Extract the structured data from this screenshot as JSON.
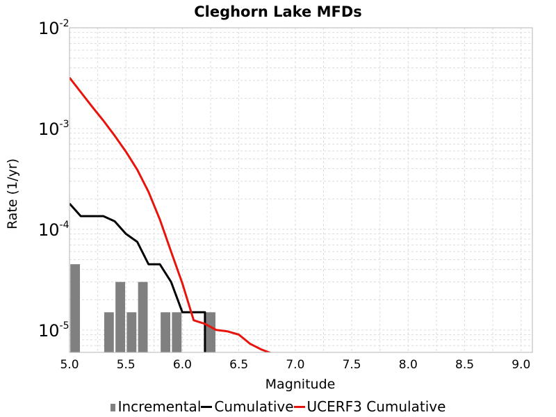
{
  "chart_data": {
    "type": "bar+line",
    "title": "Cleghorn Lake MFDs",
    "xlabel": "Magnitude",
    "ylabel": "Rate (1/yr)",
    "x_scale": "linear",
    "y_scale": "log",
    "xlim": [
      5.0,
      9.1
    ],
    "ylim": [
      6e-06,
      0.01
    ],
    "grid": true,
    "legend_position": "bottom",
    "x_ticks": [
      "5.0",
      "5.5",
      "6.0",
      "6.5",
      "7.0",
      "7.5",
      "8.0",
      "8.5",
      "9.0"
    ],
    "y_ticks": [
      {
        "base": "10",
        "exp": "-2",
        "value": 0.01
      },
      {
        "base": "10",
        "exp": "-3",
        "value": 0.001
      },
      {
        "base": "10",
        "exp": "-4",
        "value": 0.0001
      },
      {
        "base": "10",
        "exp": "-5",
        "value": 1e-05
      }
    ],
    "series": [
      {
        "name": "Incremental",
        "kind": "bar",
        "color": "#808080",
        "bin_width": 0.1,
        "x": [
          5.05,
          5.35,
          5.45,
          5.55,
          5.65,
          5.85,
          5.95,
          6.25
        ],
        "y": [
          4.5e-05,
          1.5e-05,
          3e-05,
          1.5e-05,
          3e-05,
          1.5e-05,
          1.5e-05,
          1.5e-05
        ]
      },
      {
        "name": "Cumulative",
        "kind": "line",
        "color": "#000000",
        "x": [
          5.0,
          5.1,
          5.3,
          5.4,
          5.5,
          5.6,
          5.7,
          5.8,
          5.9,
          6.0,
          6.1,
          6.2,
          6.2
        ],
        "y": [
          0.00018,
          0.000135,
          0.000135,
          0.00012,
          9e-05,
          7.5e-05,
          4.5e-05,
          4.5e-05,
          3e-05,
          1.5e-05,
          1.5e-05,
          1.5e-05,
          6e-06
        ]
      },
      {
        "name": "UCERF3 Cumulative",
        "kind": "line",
        "color": "#e8140c",
        "x": [
          5.0,
          5.1,
          5.2,
          5.3,
          5.4,
          5.5,
          5.6,
          5.7,
          5.8,
          5.9,
          6.0,
          6.1,
          6.2,
          6.3,
          6.4,
          6.5,
          6.6,
          6.7,
          6.8
        ],
        "y": [
          0.0032,
          0.0023,
          0.00165,
          0.0012,
          0.00085,
          0.00059,
          0.00039,
          0.000235,
          0.000125,
          6e-05,
          2.9e-05,
          1.25e-05,
          1.15e-05,
          1e-05,
          9.7e-06,
          9e-06,
          7.3e-06,
          6.4e-06,
          5.8e-06
        ]
      }
    ]
  },
  "legend": {
    "incremental": "Incremental",
    "cumulative": "Cumulative",
    "ucerf3": "UCERF3 Cumulative"
  },
  "colors": {
    "incremental": "#808080",
    "cumulative": "#000000",
    "ucerf3": "#e8140c",
    "grid": "#dcdcdc",
    "frame": "#b4b4b4"
  }
}
